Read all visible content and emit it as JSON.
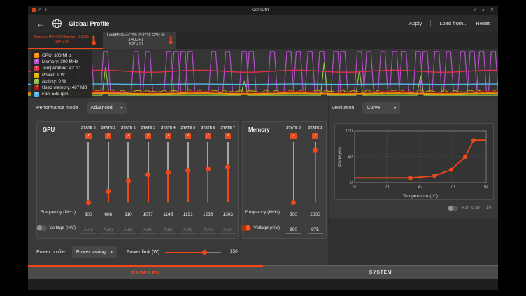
{
  "titlebar": {
    "title": "CoreCtrl",
    "indicators": [
      "A",
      "⇓"
    ],
    "minimize": "∨",
    "maximize": "∧",
    "close": "✕"
  },
  "header": {
    "back": "←",
    "title": "Global Profile",
    "apply": "Apply",
    "load_from": "Load from...",
    "reset": "Reset"
  },
  "device_tabs": [
    {
      "line1": "Radeon RX 480 Gaming X 8GB",
      "line2": "[GPU 0]",
      "active": true
    },
    {
      "line1": "Intel(R) Core(TM) i7-3770 CPU @ 3.40GHz",
      "line2": "[CPU 0]",
      "active": false
    }
  ],
  "legend": {
    "items": [
      {
        "label": "GPU: 300 MHz",
        "color": "#ff9000"
      },
      {
        "label": "Memory: 300 MHz",
        "color": "#b44fc8"
      },
      {
        "label": "Temperature: 42 °C",
        "color": "#e03048"
      },
      {
        "label": "Power: 9 W",
        "color": "#e8b000"
      },
      {
        "label": "Activity: 0 %",
        "color": "#8bc34a"
      },
      {
        "label": "Used memory: 467 MB",
        "color": "#a51a1a"
      },
      {
        "label": "Fan: 589 rpm",
        "color": "#52b8e8"
      }
    ]
  },
  "performance": {
    "label": "Performance mode",
    "value": "Advanced"
  },
  "ventilation": {
    "label": "Ventilation",
    "value": "Curve",
    "fan_start_label": "Fan start",
    "fan_start_value": "10"
  },
  "gpu": {
    "title": "GPU",
    "freq_label": "Frequency (MHz)",
    "voltage_label": "Voltage (mV)",
    "voltage_enabled": false,
    "states": [
      {
        "name": "STATE 0",
        "freq": "300"
      },
      {
        "name": "STATE 1",
        "freq": "608"
      },
      {
        "name": "STATE 2",
        "freq": "910"
      },
      {
        "name": "STATE 3",
        "freq": "1077"
      },
      {
        "name": "STATE 4",
        "freq": "1145"
      },
      {
        "name": "STATE 5",
        "freq": "1191"
      },
      {
        "name": "STATE 6",
        "freq": "1236"
      },
      {
        "name": "STATE 7",
        "freq": "1303"
      }
    ],
    "voltages": [
      "Auto",
      "Auto",
      "Auto",
      "Auto",
      "Auto",
      "Auto",
      "Auto",
      "Auto"
    ]
  },
  "memory": {
    "title": "Memory",
    "freq_label": "Frequency (MHz)",
    "voltage_label": "Voltage (mV)",
    "voltage_enabled": true,
    "states": [
      {
        "name": "STATE 0",
        "freq": "300"
      },
      {
        "name": "STATE 1",
        "freq": "2000"
      }
    ],
    "voltages": [
      "800",
      "975"
    ]
  },
  "power": {
    "profile_label": "Power profile",
    "profile_value": "Power saving",
    "limit_label": "Power limit (W)",
    "limit_value": "150"
  },
  "bottom_tabs": [
    {
      "label": "PROFILES",
      "active": true
    },
    {
      "label": "SYSTEM",
      "active": false
    }
  ],
  "colors": {
    "accent": "#f04818",
    "panel": "#393939",
    "graph_bg": "#353535"
  },
  "chart_data": [
    {
      "type": "line",
      "title": "GPU sensors history",
      "legend_position": "top-left",
      "note": "time-series monitor; current values shown in legend",
      "series": [
        {
          "name": "Memory clock",
          "color": "#b44fc8",
          "shape": "pulses",
          "baseline": 0.885,
          "peak": 0.055,
          "pulse_centers": [
            0.025,
            0.055,
            0.1,
            0.13,
            0.165,
            0.23,
            0.255,
            0.3,
            0.315,
            0.33,
            0.345,
            0.395,
            0.425,
            0.46,
            0.475,
            0.52,
            0.555,
            0.575,
            0.6,
            0.625,
            0.655,
            0.67,
            0.705,
            0.725,
            0.755,
            0.78,
            0.8,
            0.83,
            0.845,
            0.87,
            0.895,
            0.925,
            0.945,
            0.965,
            0.99
          ]
        },
        {
          "name": "Activity",
          "color": "#8bc34a",
          "shape": "spikes",
          "baseline": 0.945,
          "spikes": [
            [
              0.165,
              0.37
            ],
            [
              0.46,
              0.67
            ],
            [
              0.63,
              0.28
            ],
            [
              0.705,
              0.44
            ],
            [
              0.835,
              0.55
            ]
          ]
        },
        {
          "name": "Power",
          "color": "#c9a100",
          "shape": "noisy",
          "baseline": 0.895,
          "amp": 0.07
        },
        {
          "name": "Used memory",
          "color": "#9b1c1c",
          "shape": "flat",
          "level": 0.875,
          "amp": 0.012,
          "width": 1.4
        },
        {
          "name": "GPU clock",
          "color": "#ff8a00",
          "shape": "flat",
          "level": 0.915,
          "amp": 0.006,
          "width": 2.6
        },
        {
          "name": "Fan",
          "color": "#52b8e8",
          "shape": "flat",
          "level": 0.72,
          "amp": 0.004,
          "width": 1.4
        },
        {
          "name": "Temperature",
          "color": "#e03048",
          "shape": "flat",
          "level": 0.455,
          "amp": 0.02,
          "width": 1.4
        }
      ]
    },
    {
      "type": "line",
      "title": "Fan curve",
      "xlabel": "Temperature (°C)",
      "ylabel": "PWM (%)",
      "xlim": [
        0,
        94
      ],
      "ylim": [
        0,
        100
      ],
      "xticks": [
        0,
        23,
        47,
        70,
        94
      ],
      "yticks": [
        0,
        50,
        100
      ],
      "color": "#f04818",
      "points": [
        [
          0,
          9
        ],
        [
          40,
          9
        ],
        [
          57,
          13
        ],
        [
          69,
          25
        ],
        [
          79,
          50
        ],
        [
          85,
          82
        ],
        [
          94,
          82
        ]
      ],
      "marker_points": [
        [
          40,
          9
        ],
        [
          57,
          13
        ],
        [
          69,
          25
        ],
        [
          79,
          50
        ],
        [
          85,
          82
        ]
      ]
    }
  ]
}
